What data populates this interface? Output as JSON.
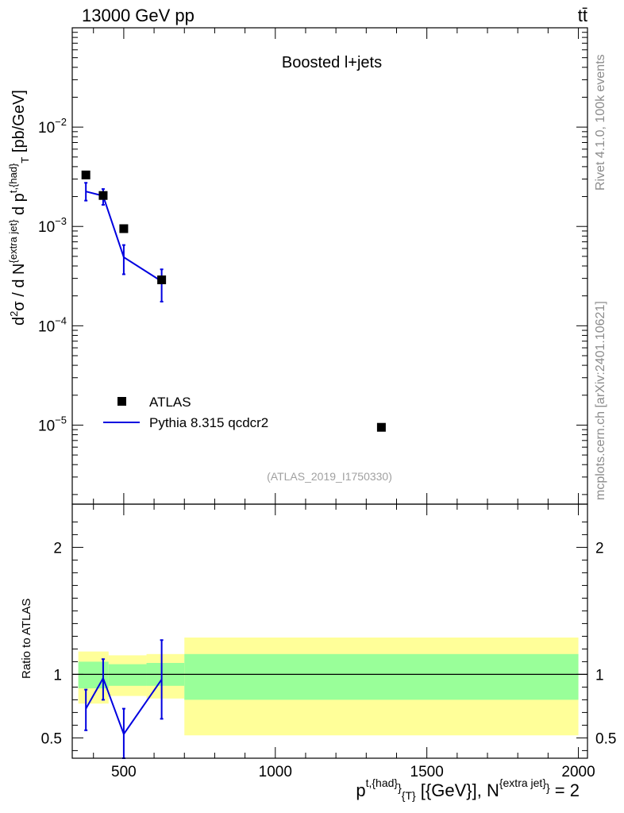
{
  "header": {
    "left": "13000 GeV pp",
    "right": "tt̄"
  },
  "side_labels": {
    "rivet": "Rivet 4.1.0,  100k events",
    "mcplots": "mcplots.cern.ch [arXiv:2401.10621]"
  },
  "colors": {
    "data": "#000000",
    "mc": "#0000e0",
    "band_inner": "#99ff99",
    "band_outer": "#ffff99",
    "watermark": "#a0a0a0"
  },
  "chart_data": [
    {
      "id": "main",
      "type": "scatter",
      "title": "Boosted l+jets",
      "analysis_id": "(ATLAS_2019_I1750330)",
      "ylabel": "d²σ / d N^{extra jet} d p^{t,{had}}_T [pb/GeV]",
      "yscale": "log",
      "xlim": [
        330,
        2030
      ],
      "ylim": [
        1.6e-06,
        0.1
      ],
      "yticks": [
        {
          "value": 1e-05,
          "base": "10",
          "exp": "−5"
        },
        {
          "value": 0.0001,
          "base": "10",
          "exp": "−4"
        },
        {
          "value": 0.001,
          "base": "10",
          "exp": "−3"
        },
        {
          "value": 0.01,
          "base": "10",
          "exp": "−2"
        }
      ],
      "legend": [
        {
          "label": "ATLAS",
          "kind": "marker"
        },
        {
          "label": "Pythia 8.315 qcdcr2",
          "kind": "line"
        }
      ],
      "series": [
        {
          "name": "ATLAS",
          "style": "marker",
          "points": [
            {
              "x": 375,
              "y": 0.0033
            },
            {
              "x": 432,
              "y": 0.00205
            },
            {
              "x": 500,
              "y": 0.00095
            },
            {
              "x": 625,
              "y": 0.00029
            },
            {
              "x": 1350,
              "y": 9.5e-06
            }
          ]
        },
        {
          "name": "Pythia 8.315 qcdcr2",
          "style": "line",
          "points": [
            {
              "x": 375,
              "y": 0.00225,
              "ylo": 0.00182,
              "yhi": 0.00275
            },
            {
              "x": 432,
              "y": 0.00203,
              "ylo": 0.00165,
              "yhi": 0.00238
            },
            {
              "x": 500,
              "y": 0.00049,
              "ylo": 0.00033,
              "yhi": 0.00065
            },
            {
              "x": 625,
              "y": 0.00028,
              "ylo": 0.000175,
              "yhi": 0.00037
            }
          ]
        }
      ]
    },
    {
      "id": "ratio",
      "type": "line",
      "ylabel": "Ratio to ATLAS",
      "xlabel": "p^{t,{had}}_{T} [{GeV}], N^{extra jet} = 2",
      "xlim": [
        330,
        2030
      ],
      "ylim": [
        0.34,
        2.34
      ],
      "xticks": [
        500,
        1000,
        1500,
        2000
      ],
      "yticks": [
        0.5,
        1,
        2
      ],
      "ytick_labels": [
        "0.5",
        "1",
        "2"
      ],
      "reference": 1.0,
      "bands": [
        {
          "x0": 350,
          "x1": 450,
          "inner": [
            0.89,
            1.1
          ],
          "outer": [
            0.77,
            1.18
          ]
        },
        {
          "x0": 450,
          "x1": 575,
          "inner": [
            0.91,
            1.08
          ],
          "outer": [
            0.83,
            1.15
          ]
        },
        {
          "x0": 575,
          "x1": 700,
          "inner": [
            0.91,
            1.09
          ],
          "outer": [
            0.81,
            1.16
          ]
        },
        {
          "x0": 700,
          "x1": 2000,
          "inner": [
            0.8,
            1.16
          ],
          "outer": [
            0.52,
            1.29
          ]
        }
      ],
      "series": [
        {
          "name": "Pythia 8.315 qcdcr2",
          "points": [
            {
              "x": 375,
              "y": 0.73,
              "ylo": 0.56,
              "yhi": 0.88
            },
            {
              "x": 432,
              "y": 0.97,
              "ylo": 0.8,
              "yhi": 1.12
            },
            {
              "x": 500,
              "y": 0.53,
              "ylo": 0.34,
              "yhi": 0.73
            },
            {
              "x": 625,
              "y": 0.96,
              "ylo": 0.65,
              "yhi": 1.27
            }
          ]
        }
      ]
    }
  ]
}
